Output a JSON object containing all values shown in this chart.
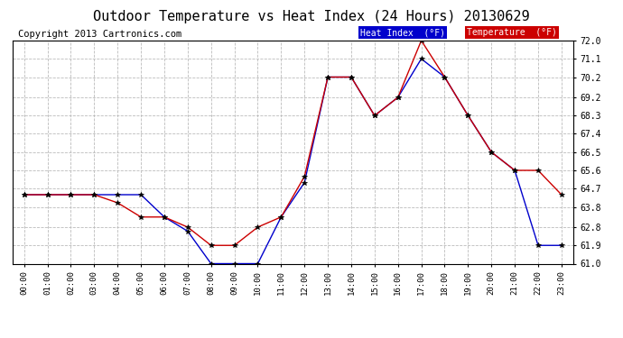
{
  "title": "Outdoor Temperature vs Heat Index (24 Hours) 20130629",
  "copyright": "Copyright 2013 Cartronics.com",
  "x_labels": [
    "00:00",
    "01:00",
    "02:00",
    "03:00",
    "04:00",
    "05:00",
    "06:00",
    "07:00",
    "08:00",
    "09:00",
    "10:00",
    "11:00",
    "12:00",
    "13:00",
    "14:00",
    "15:00",
    "16:00",
    "17:00",
    "18:00",
    "19:00",
    "20:00",
    "21:00",
    "22:00",
    "23:00"
  ],
  "heat_index": [
    64.4,
    64.4,
    64.4,
    64.4,
    64.4,
    64.4,
    63.3,
    62.6,
    61.0,
    61.0,
    61.0,
    63.3,
    65.0,
    70.2,
    70.2,
    68.3,
    69.2,
    71.1,
    70.2,
    68.3,
    66.5,
    65.6,
    61.9,
    61.9
  ],
  "temperature": [
    64.4,
    64.4,
    64.4,
    64.4,
    64.0,
    63.3,
    63.3,
    62.8,
    61.9,
    61.9,
    62.8,
    63.3,
    65.3,
    70.2,
    70.2,
    68.3,
    69.2,
    72.0,
    70.2,
    68.3,
    66.5,
    65.6,
    65.6,
    64.4
  ],
  "heat_index_color": "#0000cc",
  "temperature_color": "#cc0000",
  "background_color": "#ffffff",
  "grid_color": "#bbbbbb",
  "legend_heat_bg": "#0000cc",
  "legend_temp_bg": "#cc0000",
  "title_fontsize": 11,
  "copyright_fontsize": 7.5,
  "ylim": [
    61.0,
    72.0
  ],
  "ylabel_right_ticks": [
    61.0,
    61.9,
    62.8,
    63.8,
    64.7,
    65.6,
    66.5,
    67.4,
    68.3,
    69.2,
    70.2,
    71.1,
    72.0
  ],
  "marker": "*",
  "marker_color": "#000000",
  "marker_size": 4,
  "legend_heat_label": "Heat Index  (°F)",
  "legend_temp_label": "Temperature  (°F)"
}
